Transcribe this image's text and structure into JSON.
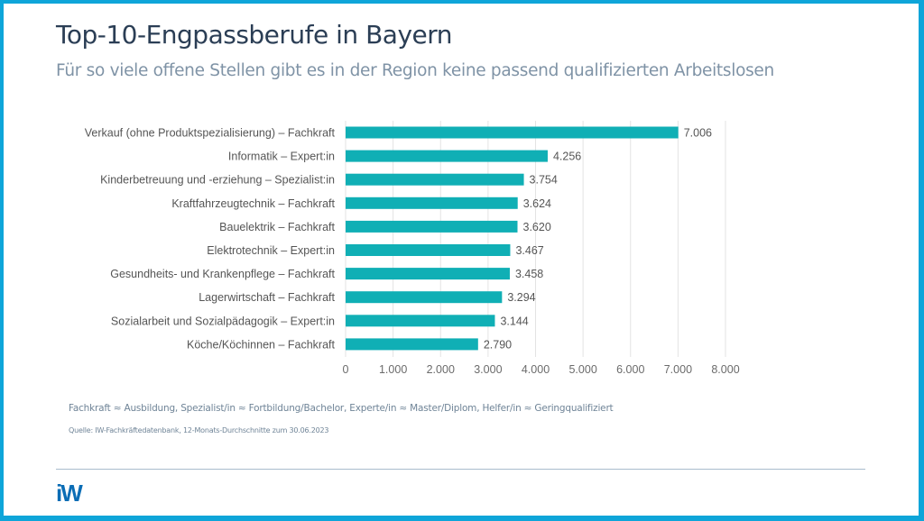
{
  "header": {
    "title": "Top-10-Engpassberufe in Bayern",
    "subtitle": "Für so viele offene Stellen gibt es in der Region keine passend qualifizierten Arbeitslosen"
  },
  "footer": {
    "legend_note": "Fachkraft ≈ Ausbildung,  Spezialist/in ≈ Fortbildung/Bachelor,  Experte/in ≈ Master/Diplom,  Helfer/in ≈ Geringqualifiziert",
    "source": "Quelle: IW-Fachkräftedatenbank, 12-Monats-Durchschnitte zum 30.06.2023",
    "logo_text": "iW"
  },
  "colors": {
    "frame": "#0ea5d9",
    "bar": "#10afb5",
    "title": "#2b3e55",
    "subtitle": "#7f93a6",
    "logo": "#0b6db5"
  },
  "chart_data": {
    "type": "bar",
    "orientation": "horizontal",
    "title": "Top-10-Engpassberufe in Bayern",
    "xlabel": "",
    "ylabel": "",
    "categories": [
      "Verkauf (ohne Produktspezialisierung) – Fachkraft",
      "Informatik – Expert:in",
      "Kinderbetreuung und -erziehung – Spezialist:in",
      "Kraftfahrzeugtechnik – Fachkraft",
      "Bauelektrik – Fachkraft",
      "Elektrotechnik – Expert:in",
      "Gesundheits- und Krankenpflege – Fachkraft",
      "Lagerwirtschaft – Fachkraft",
      "Sozialarbeit und Sozialpädagogik – Expert:in",
      "Köche/Köchinnen – Fachkraft"
    ],
    "values": [
      7006,
      4256,
      3754,
      3624,
      3620,
      3467,
      3458,
      3294,
      3144,
      2790
    ],
    "value_labels": [
      "7.006",
      "4.256",
      "3.754",
      "3.624",
      "3.620",
      "3.467",
      "3.458",
      "3.294",
      "3.144",
      "2.790"
    ],
    "xlim": [
      0,
      8000
    ],
    "xticks": [
      0,
      1000,
      2000,
      3000,
      4000,
      5000,
      6000,
      7000,
      8000
    ],
    "xtick_labels": [
      "0",
      "1.000",
      "2.000",
      "3.000",
      "4.000",
      "5.000",
      "6.000",
      "7.000",
      "8.000"
    ],
    "grid": true,
    "legend": "none"
  }
}
